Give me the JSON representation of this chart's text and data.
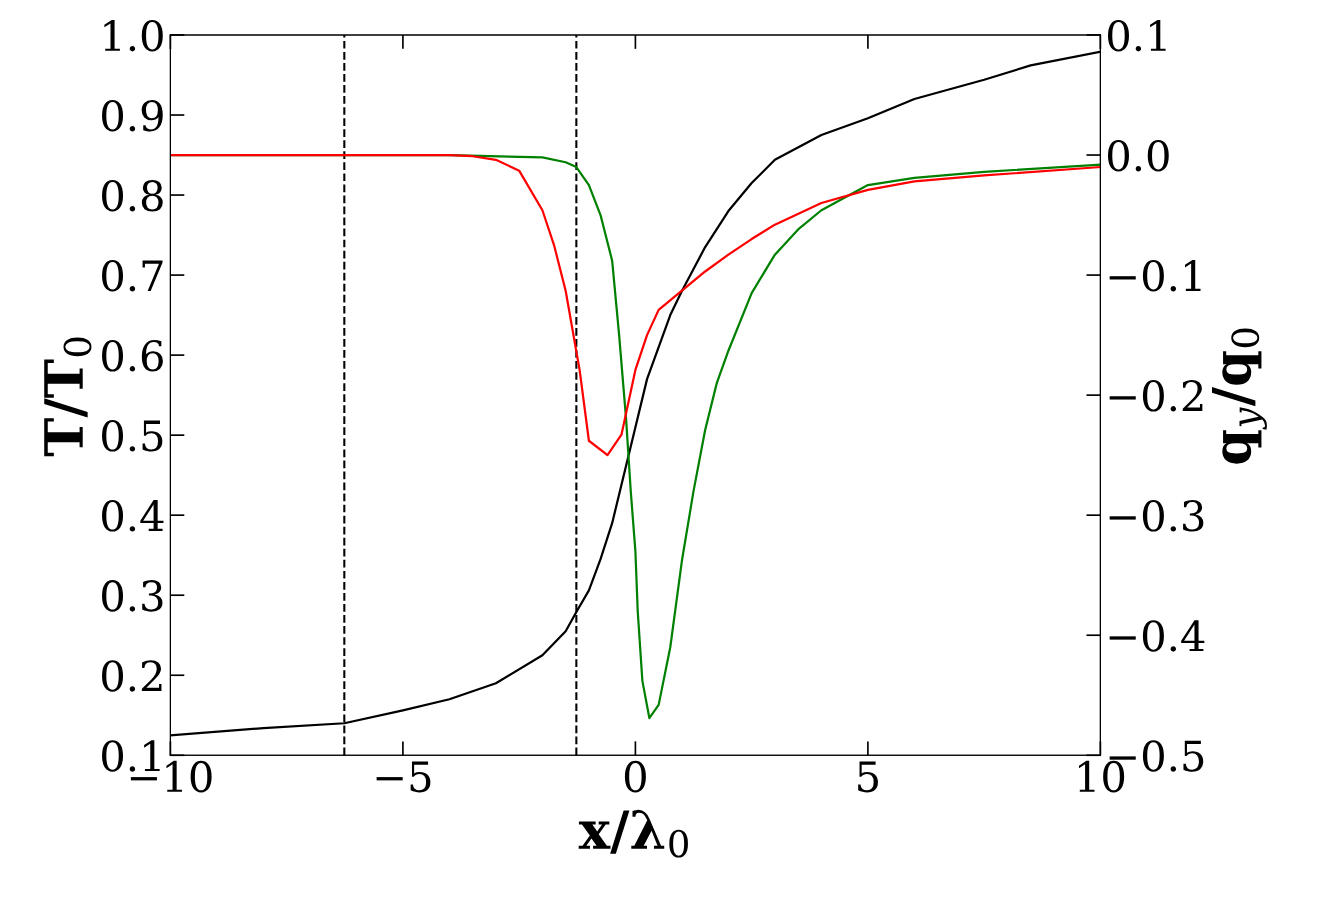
{
  "chart_data": {
    "type": "line",
    "xlabel": "x/λ$_{0}$",
    "ylabel": "T/T$_{0}$",
    "y2label": "q$_{y}$/q$_{0}$",
    "xlim": [
      -10,
      10
    ],
    "xticks": [
      {
        "value": -10,
        "label": "−10"
      },
      {
        "value": -5,
        "label": "−5"
      },
      0,
      5,
      10
    ],
    "ylim": [
      0.1,
      1.0
    ],
    "yticks": [
      0.1,
      0.2,
      0.3,
      0.4,
      0.5,
      0.6,
      0.7,
      0.8,
      0.9,
      {
        "value": 1.0,
        "label": "1.0"
      }
    ],
    "y2lim": [
      -0.5,
      0.1
    ],
    "y2ticks": [
      {
        "value": -0.5,
        "label": "−0.5"
      },
      {
        "value": -0.4,
        "label": "−0.4"
      },
      {
        "value": -0.3,
        "label": "−0.3"
      },
      {
        "value": -0.2,
        "label": "−0.2"
      },
      {
        "value": -0.1,
        "label": "−0.1"
      },
      {
        "value": 0.0,
        "label": "0.0"
      },
      0.1
    ],
    "grid": false,
    "legend": false,
    "line_style": "solid",
    "marker": "none",
    "series": [
      {
        "color": "#000000",
        "x": [
          -10,
          -8,
          -6.26,
          -5,
          -4,
          -3,
          -2,
          -1.5,
          -1.27,
          -1,
          -0.75,
          -0.5,
          -0.25,
          0,
          0.25,
          0.5,
          0.75,
          1,
          1.5,
          2,
          2.5,
          3,
          4,
          5,
          6,
          7.5,
          8.5,
          10
        ],
        "values": [
          0.125,
          0.134,
          0.14,
          0.156,
          0.17,
          0.19,
          0.225,
          0.255,
          0.279,
          0.306,
          0.345,
          0.39,
          0.45,
          0.51,
          0.57,
          0.61,
          0.65,
          0.68,
          0.735,
          0.78,
          0.815,
          0.844,
          0.875,
          0.896,
          0.92,
          0.944,
          0.962,
          0.979
        ]
      },
      {
        "color": "#008000",
        "axis": "y2",
        "x": [
          -10,
          -4,
          -2,
          -1.5,
          -1.27,
          -1,
          -0.75,
          -0.5,
          -0.35,
          -0.2,
          -0.1,
          0,
          0.05,
          0.15,
          0.3,
          0.5,
          0.75,
          1,
          1.25,
          1.5,
          1.75,
          2,
          2.5,
          3,
          3.5,
          4,
          5,
          6,
          7.5,
          10
        ],
        "values": [
          0.0,
          0.0,
          -0.002,
          -0.006,
          -0.01,
          -0.025,
          -0.05,
          -0.088,
          -0.15,
          -0.22,
          -0.28,
          -0.33,
          -0.38,
          -0.438,
          -0.469,
          -0.458,
          -0.41,
          -0.338,
          -0.28,
          -0.229,
          -0.19,
          -0.163,
          -0.115,
          -0.083,
          -0.062,
          -0.046,
          -0.025,
          -0.019,
          -0.014,
          -0.008
        ]
      },
      {
        "color": "#ff0000",
        "axis": "y2",
        "x": [
          -10,
          -4,
          -3.5,
          -3,
          -2.5,
          -2,
          -1.75,
          -1.5,
          -1.2,
          -1,
          -0.6,
          -0.3,
          0,
          0.25,
          0.5,
          1,
          1.5,
          2,
          2.5,
          3,
          4,
          5,
          6,
          7.5,
          10
        ],
        "values": [
          0.0,
          0.0,
          -0.001,
          -0.004,
          -0.013,
          -0.046,
          -0.075,
          -0.113,
          -0.179,
          -0.238,
          -0.25,
          -0.233,
          -0.179,
          -0.15,
          -0.129,
          -0.113,
          -0.097,
          -0.083,
          -0.07,
          -0.058,
          -0.04,
          -0.029,
          -0.022,
          -0.017,
          -0.01
        ]
      }
    ],
    "ref_lines": [
      {
        "axis": "x",
        "value": -6.26,
        "color": "#000000",
        "line_style": "dashed"
      },
      {
        "axis": "x",
        "value": -1.27,
        "color": "#000000",
        "line_style": "dashed"
      }
    ]
  }
}
